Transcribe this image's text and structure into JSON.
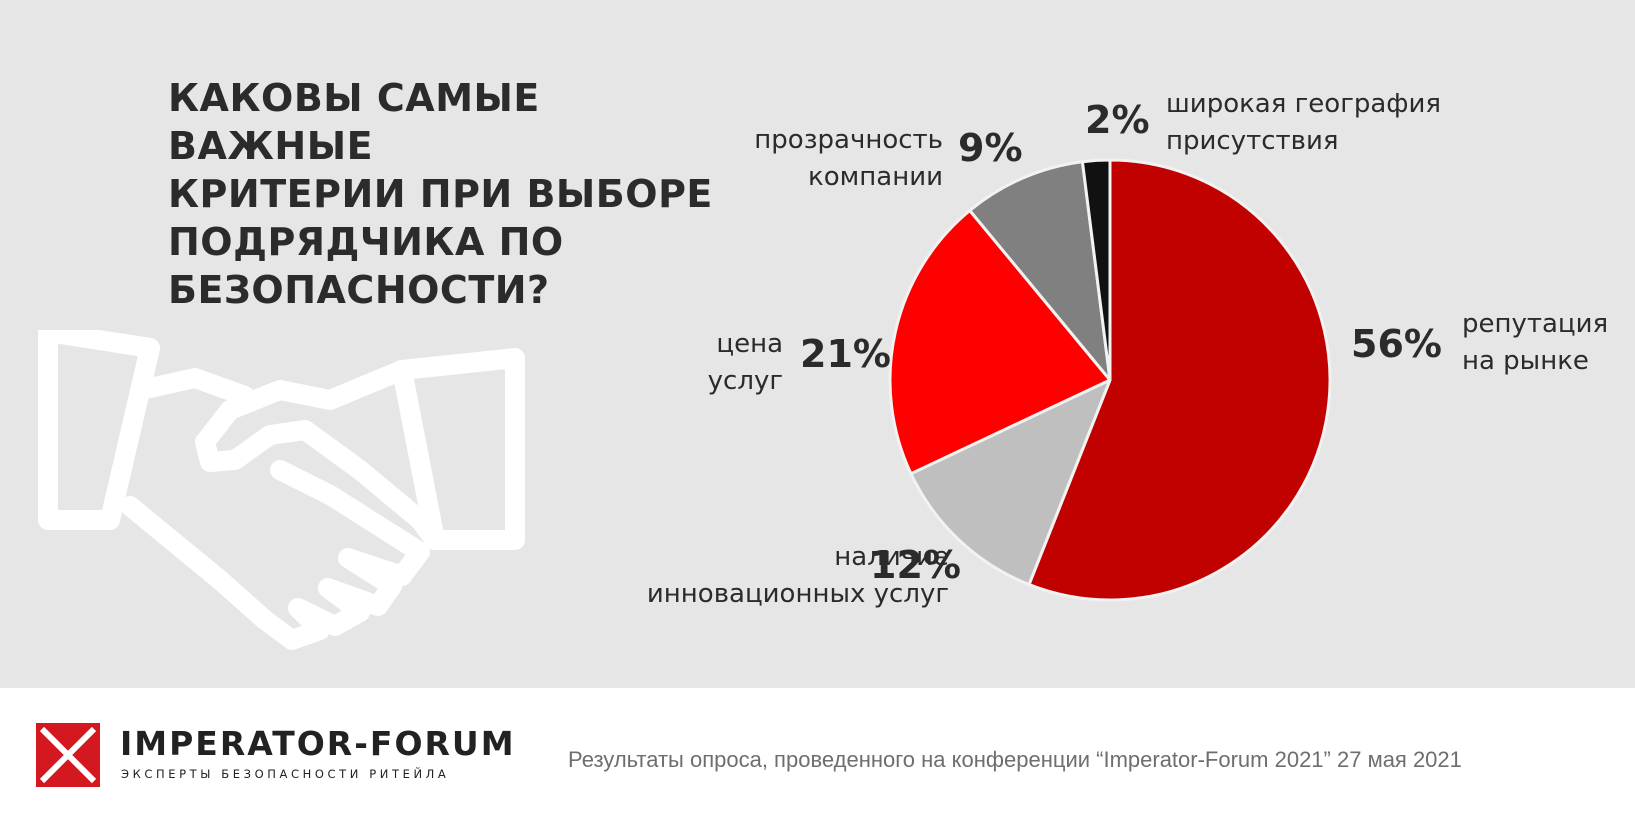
{
  "title_lines": [
    "КАКОВЫ САМЫЕ ВАЖНЫЕ",
    "КРИТЕРИИ ПРИ ВЫБОРЕ",
    "ПОДРЯДЧИКА ПО",
    "БЕЗОПАСНОСТИ?"
  ],
  "chart_data": {
    "type": "pie",
    "start_angle_deg": 0,
    "direction": "clockwise",
    "slices": [
      {
        "pct": "56%",
        "value": 56,
        "label_lines": [
          "репутация",
          "на рынке"
        ],
        "color": "#c10000"
      },
      {
        "pct": "12%",
        "value": 12,
        "label_lines": [
          "наличие",
          "инновационных услуг"
        ],
        "color": "#bfbfbf"
      },
      {
        "pct": "21%",
        "value": 21,
        "label_lines": [
          "цена",
          "услуг"
        ],
        "color": "#ff0000"
      },
      {
        "pct": "9%",
        "value": 9,
        "label_lines": [
          "прозрачность",
          "компании"
        ],
        "color": "#808080"
      },
      {
        "pct": "2%",
        "value": 2,
        "label_lines": [
          "широкая география",
          "присутствия"
        ],
        "color": "#111111"
      }
    ]
  },
  "icons": {
    "illustration": "handshake-icon",
    "brand": "imperator-forum-logo"
  },
  "footer": {
    "brand_name": "IMPERATOR-FORUM",
    "brand_tagline": "ЭКСПЕРТЫ БЕЗОПАСНОСТИ РИТЕЙЛА",
    "note": "Результаты опроса, проведенного на конференции “Imperator-Forum 2021” 27 мая 2021"
  },
  "colors": {
    "background": "#e6e6e6",
    "accent": "#c10000",
    "logo_red": "#d4181f"
  }
}
